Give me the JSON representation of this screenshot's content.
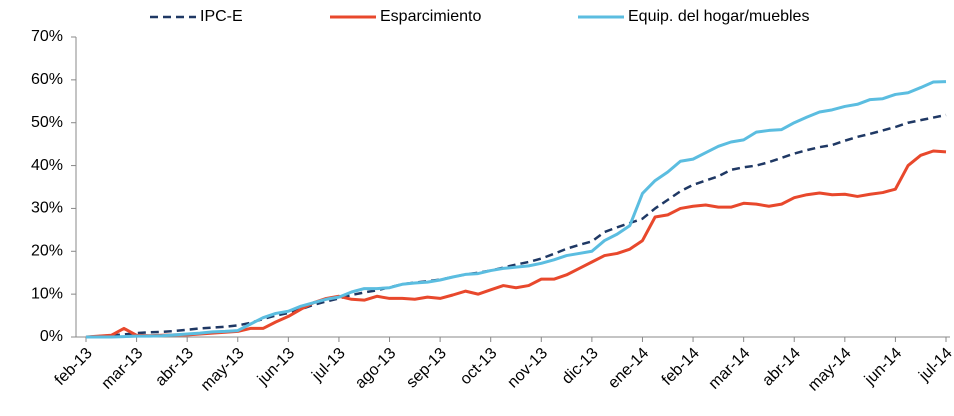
{
  "chart_data": {
    "type": "line",
    "categories": [
      "feb-13",
      null,
      null,
      null,
      "mar-13",
      null,
      null,
      null,
      "abr-13",
      null,
      null,
      null,
      "may-13",
      null,
      null,
      null,
      "jun-13",
      null,
      null,
      null,
      "jul-13",
      null,
      null,
      null,
      "ago-13",
      null,
      null,
      null,
      "sep-13",
      null,
      null,
      null,
      "oct-13",
      null,
      null,
      null,
      "nov-13",
      null,
      null,
      null,
      "dic-13",
      null,
      null,
      null,
      "ene-14",
      null,
      null,
      null,
      "feb-14",
      null,
      null,
      null,
      "mar-14",
      null,
      null,
      null,
      "abr-14",
      null,
      null,
      null,
      "may-14",
      null,
      null,
      null,
      "jun-14",
      null,
      null,
      null,
      "jul-14"
    ],
    "series": [
      {
        "name": "IPC-E",
        "color": "#1f3864",
        "dashed": true,
        "values": [
          0,
          0.2,
          0.4,
          0.6,
          0.9,
          1.1,
          1.2,
          1.4,
          1.7,
          2.0,
          2.2,
          2.4,
          2.7,
          3.3,
          4.2,
          5.0,
          5.6,
          6.5,
          7.5,
          8.3,
          9.0,
          9.8,
          10.4,
          10.9,
          11.6,
          12.3,
          12.7,
          13.0,
          13.4,
          14.0,
          14.6,
          15.0,
          15.5,
          16.2,
          16.9,
          17.5,
          18.3,
          19.4,
          20.6,
          21.5,
          22.3,
          24.5,
          25.6,
          26.6,
          27.6,
          30.0,
          32.0,
          34.0,
          35.5,
          36.5,
          37.5,
          39.0,
          39.6,
          40.0,
          40.8,
          41.8,
          42.8,
          43.6,
          44.3,
          44.8,
          45.8,
          46.7,
          47.4,
          48.2,
          49.0,
          50.0,
          50.6,
          51.2,
          51.8
        ]
      },
      {
        "name": "Esparcimiento",
        "color": "#e8482c",
        "dashed": false,
        "values": [
          0,
          0.2,
          0.4,
          2.0,
          0.4,
          0.3,
          0.4,
          0.5,
          0.5,
          0.7,
          0.9,
          1.1,
          1.3,
          2.0,
          2.0,
          3.5,
          4.8,
          6.5,
          8.0,
          9.0,
          9.5,
          8.8,
          8.6,
          9.5,
          9.0,
          9.0,
          8.8,
          9.3,
          9.0,
          9.8,
          10.7,
          10.0,
          11.0,
          12.0,
          11.5,
          12.0,
          13.5,
          13.5,
          14.5,
          16.0,
          17.5,
          19.0,
          19.5,
          20.5,
          22.5,
          28.0,
          28.5,
          30.0,
          30.5,
          30.8,
          30.3,
          30.3,
          31.2,
          31.0,
          30.5,
          31.0,
          32.5,
          33.2,
          33.6,
          33.2,
          33.3,
          32.8,
          33.3,
          33.7,
          34.5,
          40.0,
          42.4,
          43.4,
          43.2
        ]
      },
      {
        "name": "Equip. del hogar/muebles",
        "color": "#5bbde0",
        "dashed": false,
        "values": [
          0,
          0,
          0,
          0.1,
          0.2,
          0.2,
          0.3,
          0.5,
          0.7,
          0.9,
          1.2,
          1.3,
          1.5,
          3.0,
          4.5,
          5.5,
          6.0,
          7.2,
          8.0,
          8.8,
          9.3,
          10.5,
          11.3,
          11.3,
          11.5,
          12.3,
          12.6,
          12.8,
          13.3,
          14.0,
          14.6,
          14.8,
          15.5,
          16.0,
          16.3,
          16.6,
          17.2,
          18.0,
          19.0,
          19.5,
          20.0,
          22.5,
          24.0,
          26.0,
          33.5,
          36.5,
          38.5,
          41.0,
          41.5,
          43.0,
          44.5,
          45.5,
          46.0,
          47.8,
          48.2,
          48.4,
          50.0,
          51.3,
          52.5,
          53.0,
          53.8,
          54.3,
          55.4,
          55.6,
          56.6,
          57.0,
          58.2,
          59.5,
          59.6
        ]
      }
    ],
    "ylim": [
      0,
      70
    ],
    "yticks": [
      {
        "value": 0,
        "label": "0%"
      },
      {
        "value": 10,
        "label": "10%"
      },
      {
        "value": 20,
        "label": "20%"
      },
      {
        "value": 30,
        "label": "30%"
      },
      {
        "value": 40,
        "label": "40%"
      },
      {
        "value": 50,
        "label": "50%"
      },
      {
        "value": 60,
        "label": "60%"
      },
      {
        "value": 70,
        "label": "70%"
      }
    ],
    "legend": "top",
    "grid": false
  }
}
